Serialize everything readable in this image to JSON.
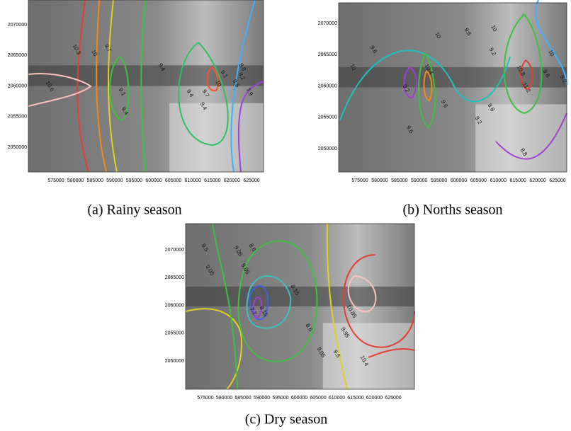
{
  "panels": [
    {
      "caption": "(a) Rainy season",
      "xticks": [
        575000,
        580000,
        585000,
        590000,
        595000,
        600000,
        605000,
        610000,
        615000,
        620000,
        625000
      ],
      "yticks": [
        2070000,
        2065000,
        2060000,
        2055000,
        2050000
      ],
      "contour_labels": [
        "10.3",
        "10",
        "9.7",
        "9.4",
        "9.1",
        "8.8",
        "10.6",
        "9.1",
        "9.4",
        "9.4",
        "9.7",
        "10",
        "9.4",
        "8.5",
        "8.2",
        "7.9"
      ]
    },
    {
      "caption": "(b) Norths season",
      "xticks": [
        575000,
        580000,
        585000,
        590000,
        595000,
        600000,
        605000,
        610000,
        615000,
        620000,
        625000
      ],
      "yticks": [
        2070000,
        2065000,
        2060000,
        2055000,
        2050000
      ],
      "contour_labels": [
        "10",
        "9.6",
        "10",
        "9.6",
        "10",
        "9.2",
        "10.4",
        "9.2",
        "9.6",
        "9.6",
        "9.2",
        "8.8",
        "10.8",
        "11.2",
        "9.6",
        "9.2",
        "8.8",
        "10"
      ]
    },
    {
      "caption": "(c) Dry season",
      "xticks": [
        575000,
        580000,
        585000,
        590000,
        595000,
        600000,
        605000,
        610000,
        615000,
        620000,
        625000
      ],
      "yticks": [
        2070000,
        2065000,
        2060000,
        2055000,
        2050000
      ],
      "contour_labels": [
        "9.5",
        "9.05",
        "9.05",
        "8.6",
        "8.15",
        "7.7",
        "8.15",
        "8.6",
        "9.05",
        "9.5",
        "9.95",
        "10.85",
        "10.4",
        "9.05"
      ]
    }
  ]
}
